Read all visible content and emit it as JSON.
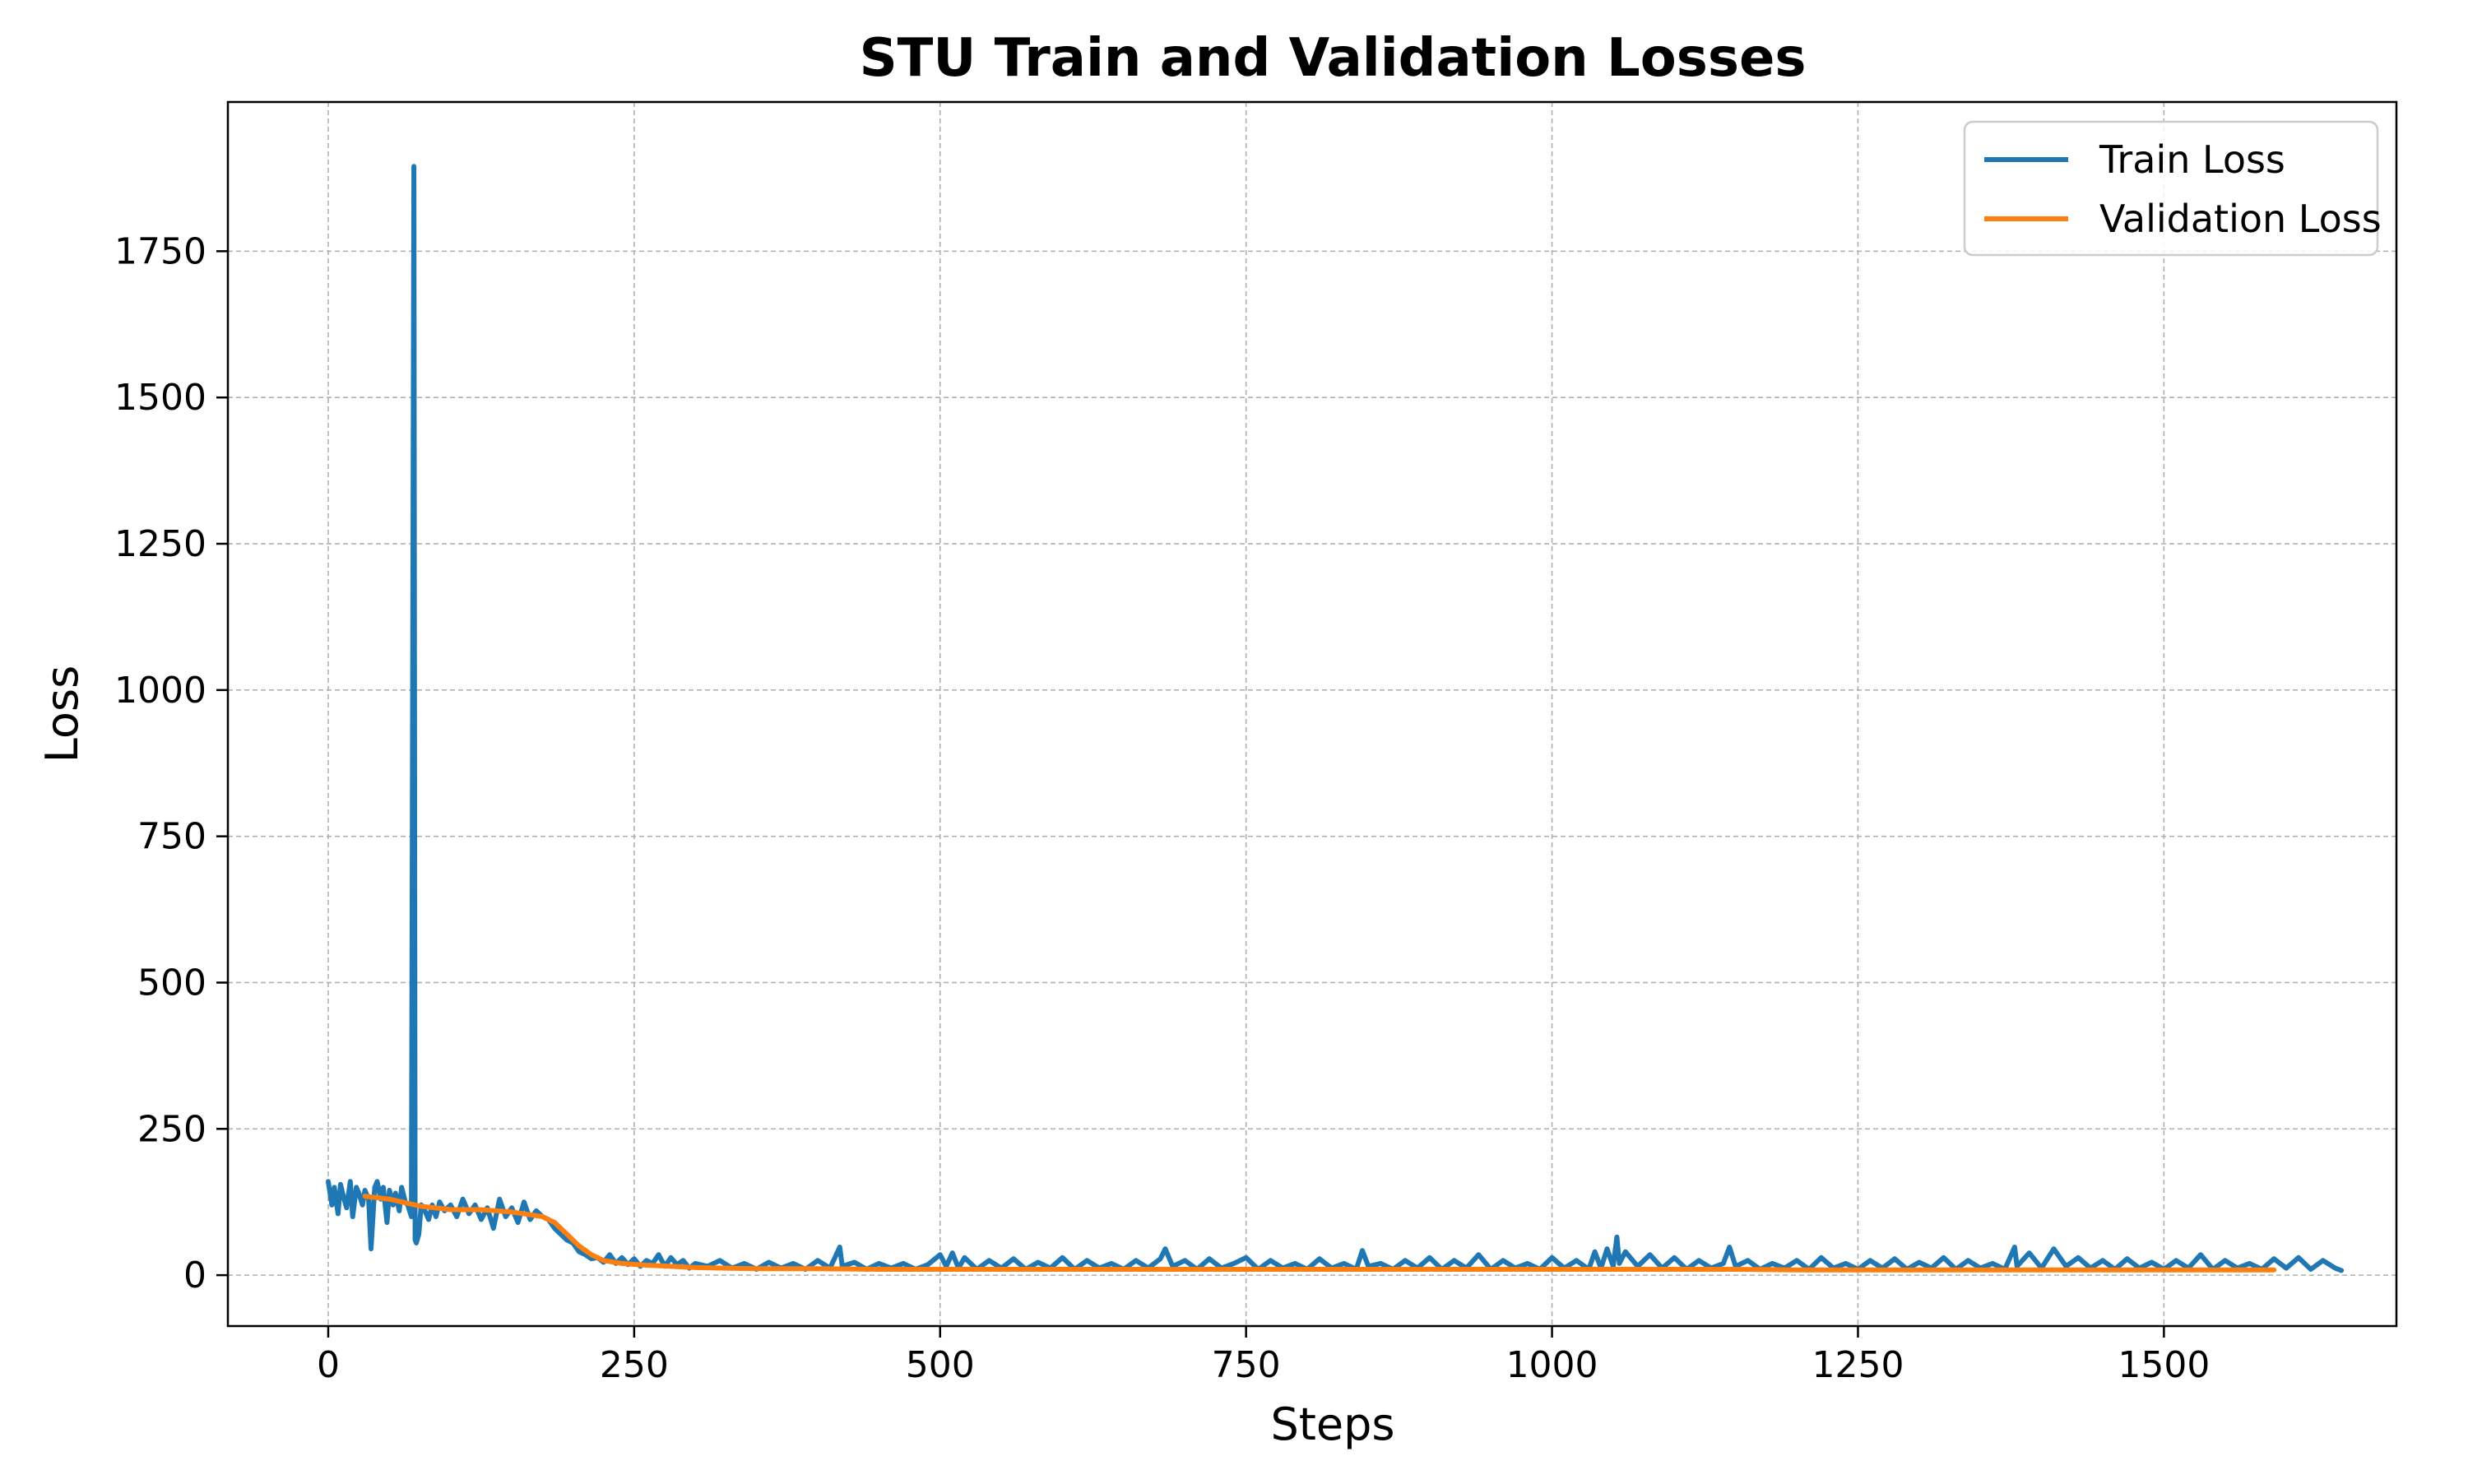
{
  "chart_data": {
    "type": "line",
    "title": "STU Train and Validation Losses",
    "xlabel": "Steps",
    "ylabel": "Loss",
    "xlim": [
      -82,
      1690
    ],
    "ylim": [
      -87,
      2005
    ],
    "xticks": [
      0,
      250,
      500,
      750,
      1000,
      1250,
      1500
    ],
    "yticks": [
      0,
      250,
      500,
      750,
      1000,
      1250,
      1500,
      1750
    ],
    "xtick_labels": [
      "0",
      "250",
      "500",
      "750",
      "1000",
      "1250",
      "1500"
    ],
    "ytick_labels": [
      "0",
      "250",
      "500",
      "750",
      "1000",
      "1250",
      "1500",
      "1750"
    ],
    "grid": true,
    "legend_position": "upper right",
    "series": [
      {
        "name": "Train Loss",
        "color": "#1f77b4",
        "x": [
          0,
          3,
          5,
          8,
          10,
          13,
          15,
          18,
          20,
          23,
          25,
          28,
          30,
          33,
          35,
          38,
          40,
          43,
          45,
          48,
          50,
          53,
          55,
          58,
          60,
          63,
          65,
          68,
          70,
          71,
          72,
          74,
          76,
          79,
          82,
          85,
          88,
          91,
          95,
          100,
          105,
          110,
          115,
          120,
          125,
          130,
          135,
          140,
          145,
          150,
          155,
          160,
          165,
          170,
          175,
          180,
          185,
          190,
          195,
          200,
          205,
          210,
          215,
          220,
          225,
          230,
          235,
          240,
          245,
          250,
          255,
          260,
          265,
          270,
          275,
          280,
          285,
          290,
          295,
          300,
          310,
          320,
          330,
          340,
          350,
          360,
          370,
          380,
          390,
          400,
          410,
          418,
          420,
          430,
          440,
          450,
          460,
          470,
          480,
          490,
          500,
          505,
          510,
          515,
          520,
          530,
          540,
          550,
          560,
          570,
          580,
          590,
          600,
          610,
          620,
          630,
          640,
          650,
          660,
          670,
          680,
          684,
          690,
          700,
          710,
          720,
          730,
          740,
          750,
          760,
          770,
          780,
          790,
          800,
          810,
          820,
          830,
          840,
          845,
          850,
          860,
          870,
          880,
          890,
          900,
          910,
          920,
          930,
          940,
          950,
          960,
          970,
          980,
          990,
          1000,
          1010,
          1020,
          1030,
          1035,
          1040,
          1045,
          1050,
          1053,
          1055,
          1060,
          1070,
          1080,
          1090,
          1100,
          1110,
          1120,
          1130,
          1140,
          1145,
          1150,
          1160,
          1170,
          1180,
          1190,
          1200,
          1210,
          1220,
          1230,
          1240,
          1250,
          1260,
          1270,
          1280,
          1290,
          1300,
          1310,
          1320,
          1330,
          1340,
          1350,
          1360,
          1370,
          1378,
          1380,
          1390,
          1400,
          1410,
          1420,
          1430,
          1440,
          1450,
          1460,
          1470,
          1480,
          1490,
          1500,
          1510,
          1520,
          1530,
          1540,
          1550,
          1560,
          1570,
          1580,
          1590,
          1600,
          1610,
          1620,
          1630,
          1640,
          1645
        ],
        "y": [
          160,
          120,
          150,
          105,
          155,
          130,
          115,
          160,
          100,
          150,
          140,
          120,
          145,
          130,
          45,
          150,
          160,
          130,
          150,
          90,
          145,
          120,
          140,
          110,
          150,
          125,
          120,
          100,
          1895,
          60,
          55,
          70,
          120,
          110,
          95,
          120,
          100,
          125,
          110,
          120,
          100,
          130,
          105,
          120,
          95,
          115,
          80,
          130,
          100,
          115,
          90,
          125,
          95,
          110,
          100,
          95,
          80,
          70,
          60,
          55,
          40,
          35,
          28,
          30,
          22,
          35,
          20,
          30,
          18,
          28,
          15,
          25,
          20,
          35,
          15,
          30,
          18,
          25,
          12,
          20,
          15,
          25,
          12,
          20,
          10,
          22,
          12,
          20,
          10,
          25,
          12,
          48,
          15,
          22,
          10,
          20,
          12,
          20,
          10,
          18,
          35,
          15,
          38,
          12,
          30,
          10,
          25,
          12,
          28,
          10,
          22,
          12,
          30,
          10,
          25,
          12,
          20,
          10,
          25,
          12,
          28,
          45,
          15,
          25,
          10,
          28,
          12,
          20,
          30,
          10,
          25,
          12,
          20,
          10,
          28,
          12,
          20,
          10,
          42,
          15,
          20,
          10,
          25,
          12,
          30,
          10,
          25,
          12,
          35,
          10,
          25,
          12,
          20,
          10,
          30,
          12,
          25,
          10,
          40,
          12,
          45,
          15,
          65,
          20,
          40,
          15,
          35,
          12,
          30,
          10,
          25,
          12,
          20,
          48,
          15,
          25,
          10,
          20,
          12,
          25,
          10,
          30,
          12,
          20,
          10,
          25,
          12,
          28,
          10,
          22,
          12,
          30,
          10,
          25,
          12,
          20,
          10,
          48,
          15,
          38,
          12,
          45,
          15,
          30,
          12,
          25,
          10,
          28,
          12,
          22,
          10,
          25,
          12,
          35,
          10,
          25,
          12,
          20,
          10,
          28,
          12,
          30,
          10,
          25,
          12,
          8
        ]
      },
      {
        "name": "Validation Loss",
        "color": "#ff7f0e",
        "x": [
          30,
          50,
          75,
          100,
          125,
          150,
          175,
          185,
          195,
          205,
          215,
          225,
          240,
          260,
          280,
          300,
          325,
          350,
          400,
          450,
          500,
          550,
          600,
          650,
          700,
          750,
          800,
          850,
          900,
          950,
          1000,
          1050,
          1100,
          1150,
          1200,
          1250,
          1300,
          1350,
          1400,
          1450,
          1500,
          1550,
          1590
        ],
        "y": [
          135,
          130,
          118,
          112,
          112,
          108,
          100,
          90,
          70,
          50,
          35,
          25,
          20,
          17,
          15,
          13,
          12,
          11,
          11,
          10,
          10,
          10,
          10,
          10,
          10,
          10,
          10,
          10,
          10,
          10,
          10,
          10,
          10,
          10,
          9,
          9,
          9,
          9,
          9,
          9,
          9,
          9,
          9
        ]
      }
    ]
  }
}
